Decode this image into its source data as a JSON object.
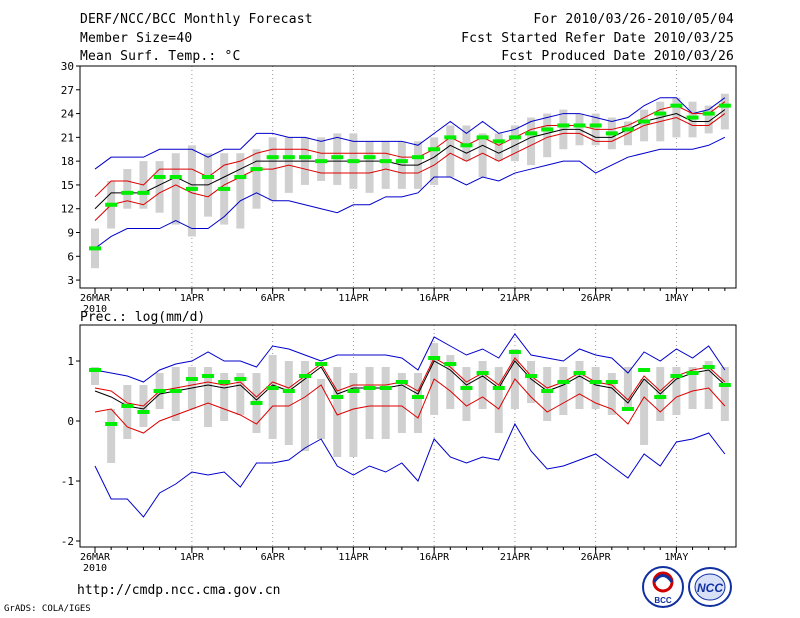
{
  "header": {
    "title": "DERF/NCC/BCC Monthly Forecast",
    "member_size": "Member Size=40",
    "variable": "Mean Surf. Temp.: °C",
    "forecast_range": "For 2010/03/26-2010/05/04",
    "refer_date": "Fcst Started Refer Date 2010/03/25",
    "produced_date": "Fcst Produced Date 2010/03/26"
  },
  "footer": {
    "url": "http://cmdp.ncc.cma.gov.cn",
    "credit": "GrADS: COLA/IGES",
    "logo_bcc": "BCC",
    "logo_ncc": "NCC"
  },
  "colors": {
    "box": "#d0d0d0",
    "median": "#00ee00",
    "mean": "#000000",
    "spread": "#dd0000",
    "extreme": "#0000cc",
    "grid": "#999999"
  },
  "chart_data": [
    {
      "type": "box",
      "title": "Mean Surf. Temp.: °C",
      "xlabel": "",
      "ylabel": "°C",
      "ylim": [
        2,
        30
      ],
      "yticks": [
        3,
        6,
        9,
        12,
        15,
        18,
        21,
        24,
        27,
        30
      ],
      "x_tick_labels": [
        {
          "day": 0,
          "label": "26MAR",
          "sub": "2010"
        },
        {
          "day": 6,
          "label": "1APR"
        },
        {
          "day": 11,
          "label": "6APR"
        },
        {
          "day": 16,
          "label": "11APR"
        },
        {
          "day": 21,
          "label": "16APR"
        },
        {
          "day": 26,
          "label": "21APR"
        },
        {
          "day": 31,
          "label": "26APR"
        },
        {
          "day": 36,
          "label": "1MAY"
        }
      ],
      "days": 40,
      "series": {
        "box_low": [
          4.5,
          9.5,
          12,
          12,
          11.5,
          10,
          8.5,
          11,
          10,
          9.5,
          12,
          13,
          14,
          15,
          15.5,
          15,
          14.5,
          14,
          14.5,
          14.5,
          14.5,
          15,
          16,
          18,
          16,
          18,
          18,
          17.5,
          18.5,
          19.5,
          20,
          20,
          19.5,
          20,
          20.5,
          20.5,
          21,
          21,
          21.5,
          22
        ],
        "box_high": [
          9.5,
          15.5,
          17,
          18,
          18,
          19,
          20,
          19,
          19,
          19,
          19.5,
          21,
          21,
          21,
          21,
          21.5,
          21.5,
          20.5,
          20.5,
          20.5,
          20.5,
          21,
          22.5,
          22.5,
          21.5,
          21.5,
          22.5,
          23.5,
          24,
          24.5,
          24,
          24,
          23.5,
          23,
          24.5,
          25.5,
          26,
          25.5,
          25,
          26.5
        ],
        "median": [
          7,
          12.5,
          14,
          14,
          16,
          16,
          14.5,
          16,
          14.5,
          16,
          17,
          18.5,
          18.5,
          18.5,
          18,
          18.5,
          18,
          18.5,
          18,
          18,
          18.5,
          19.5,
          21,
          20,
          21,
          20.5,
          21,
          21.5,
          22,
          22.5,
          22.5,
          22.5,
          21.5,
          22,
          23,
          24,
          25,
          23.5,
          24,
          25
        ],
        "mean": [
          12,
          14,
          14,
          14,
          15,
          16,
          15,
          15,
          16,
          17,
          18,
          18,
          18,
          18,
          18,
          18,
          18,
          18,
          18,
          17.5,
          17.5,
          18.5,
          20,
          19,
          20,
          19,
          20,
          21,
          21.5,
          22,
          22,
          21,
          21,
          22,
          23,
          23.5,
          24,
          23,
          23,
          24.5
        ],
        "spread_high": [
          13.5,
          15.5,
          15.5,
          15,
          17,
          17,
          17,
          16,
          17.5,
          18,
          19,
          19.5,
          19.5,
          19.5,
          19,
          19,
          19,
          19,
          19,
          18.5,
          18.5,
          19.5,
          21,
          20,
          21,
          20,
          21,
          22,
          22.5,
          22.5,
          22.5,
          22,
          22,
          22.5,
          23.5,
          24.5,
          25,
          24,
          24,
          25.5
        ],
        "spread_low": [
          10.5,
          12.5,
          13,
          12.5,
          14,
          15,
          14,
          13.5,
          15,
          16,
          17,
          17,
          17.5,
          17,
          16.5,
          16.5,
          16.5,
          16.5,
          17,
          16.5,
          16.5,
          17.5,
          19,
          18,
          19,
          18,
          19,
          20,
          21,
          21.5,
          21.5,
          20.5,
          20.5,
          21.5,
          22.5,
          23,
          23.5,
          22.5,
          22.5,
          24
        ],
        "max": [
          17,
          18.5,
          18.5,
          18.5,
          19.5,
          19.5,
          19.5,
          18.5,
          19.5,
          19.5,
          21.5,
          21.5,
          21,
          21,
          20.5,
          21,
          20.5,
          20.5,
          20.5,
          20.5,
          20,
          21.5,
          23,
          21.5,
          23,
          21.5,
          22,
          23,
          23.5,
          24,
          24,
          23.5,
          23,
          23.5,
          25,
          26,
          26,
          24,
          24.5,
          26
        ],
        "min": [
          7,
          8.5,
          9.5,
          9.5,
          9.5,
          10.5,
          9.5,
          9.5,
          11,
          13,
          14,
          13,
          13,
          12.5,
          12,
          11.5,
          12.5,
          12.5,
          13.5,
          13.5,
          14,
          16,
          16,
          15,
          16,
          15.5,
          16.5,
          17,
          17.5,
          18,
          18,
          16.5,
          17.5,
          18.5,
          19,
          19.5,
          19.5,
          19.5,
          20,
          21
        ]
      }
    },
    {
      "type": "box",
      "title": "Prec.: log(mm/d)",
      "xlabel": "",
      "ylabel": "log(mm/d)",
      "ylim": [
        -2.1,
        1.6
      ],
      "yticks": [
        -2,
        -1,
        0,
        1
      ],
      "x_tick_labels": [
        {
          "day": 0,
          "label": "26MAR",
          "sub": "2010"
        },
        {
          "day": 6,
          "label": "1APR"
        },
        {
          "day": 11,
          "label": "6APR"
        },
        {
          "day": 16,
          "label": "11APR"
        },
        {
          "day": 21,
          "label": "16APR"
        },
        {
          "day": 26,
          "label": "21APR"
        },
        {
          "day": 31,
          "label": "26APR"
        },
        {
          "day": 36,
          "label": "1MAY"
        }
      ],
      "days": 40,
      "series": {
        "box_low": [
          0.6,
          -0.7,
          -0.3,
          -0.1,
          0.2,
          0,
          0.2,
          -0.1,
          0,
          0.1,
          -0.2,
          -0.3,
          -0.4,
          -0.5,
          -0.3,
          -0.6,
          -0.6,
          -0.3,
          -0.3,
          -0.2,
          -0.2,
          0.1,
          0.2,
          0,
          0.2,
          -0.2,
          0.2,
          0.3,
          0,
          0.1,
          0.2,
          0.2,
          0.1,
          0.2,
          -0.4,
          0,
          0.1,
          0.2,
          0.2,
          0
        ],
        "box_high": [
          0.9,
          0.2,
          0.6,
          0.6,
          0.8,
          0.9,
          0.9,
          0.9,
          0.8,
          0.8,
          0.8,
          1.1,
          1,
          1,
          0.7,
          0.9,
          0.8,
          0.9,
          0.9,
          0.8,
          0.8,
          1.3,
          1.1,
          0.9,
          1,
          0.9,
          1.2,
          1,
          0.9,
          0.9,
          1,
          0.9,
          0.8,
          0.9,
          0.7,
          0.9,
          0.9,
          0.9,
          1,
          0.9
        ],
        "median": [
          0.85,
          -0.05,
          0.25,
          0.15,
          0.5,
          0.5,
          0.7,
          0.75,
          0.65,
          0.7,
          0.3,
          0.55,
          0.5,
          0.75,
          0.95,
          0.4,
          0.5,
          0.55,
          0.55,
          0.65,
          0.4,
          1.05,
          0.95,
          0.55,
          0.8,
          0.55,
          1.15,
          0.75,
          0.5,
          0.65,
          0.8,
          0.65,
          0.65,
          0.2,
          0.85,
          0.4,
          0.75,
          0.8,
          0.9,
          0.6
        ],
        "mean": [
          0.5,
          0.4,
          0.25,
          0.2,
          0.45,
          0.5,
          0.55,
          0.6,
          0.55,
          0.6,
          0.35,
          0.6,
          0.5,
          0.7,
          0.9,
          0.45,
          0.55,
          0.55,
          0.55,
          0.6,
          0.45,
          1,
          0.85,
          0.6,
          0.75,
          0.55,
          1,
          0.7,
          0.5,
          0.6,
          0.75,
          0.6,
          0.55,
          0.3,
          0.7,
          0.45,
          0.7,
          0.8,
          0.85,
          0.6
        ],
        "spread_high": [
          0.55,
          0.5,
          0.3,
          0.25,
          0.5,
          0.55,
          0.6,
          0.65,
          0.6,
          0.65,
          0.4,
          0.65,
          0.55,
          0.75,
          0.95,
          0.5,
          0.6,
          0.6,
          0.6,
          0.65,
          0.5,
          1.05,
          0.9,
          0.65,
          0.8,
          0.6,
          1.05,
          0.75,
          0.55,
          0.65,
          0.8,
          0.65,
          0.6,
          0.35,
          0.75,
          0.5,
          0.75,
          0.85,
          0.9,
          0.65
        ],
        "spread_low": [
          0.15,
          0.2,
          -0.1,
          -0.2,
          0,
          0.1,
          0.2,
          0.3,
          0.2,
          0.1,
          -0.05,
          0.25,
          0.25,
          0.4,
          0.6,
          0.1,
          0.2,
          0.25,
          0.25,
          0.25,
          0.05,
          0.7,
          0.5,
          0.25,
          0.4,
          0.2,
          0.7,
          0.4,
          0.15,
          0.3,
          0.45,
          0.3,
          0.2,
          -0.05,
          0.4,
          0.15,
          0.4,
          0.5,
          0.55,
          0.25
        ],
        "max": [
          0.85,
          0.8,
          0.75,
          0.65,
          0.85,
          0.95,
          1,
          1.15,
          1,
          1,
          0.9,
          1.25,
          1.2,
          1.1,
          1,
          1.1,
          1.1,
          1.1,
          1.1,
          1.05,
          0.85,
          1.4,
          1.25,
          1.1,
          1.2,
          1.05,
          1.45,
          1.1,
          1.05,
          1,
          1.2,
          1.1,
          1.05,
          0.8,
          1.15,
          1,
          1.2,
          1.05,
          1.25,
          0.85
        ],
        "min": [
          -0.75,
          -1.3,
          -1.3,
          -1.6,
          -1.2,
          -1.05,
          -0.85,
          -0.9,
          -0.85,
          -1.1,
          -0.7,
          -0.7,
          -0.65,
          -0.45,
          -0.3,
          -0.75,
          -0.9,
          -0.75,
          -0.85,
          -0.7,
          -1,
          -0.3,
          -0.6,
          -0.7,
          -0.6,
          -0.65,
          -0.05,
          -0.5,
          -0.8,
          -0.75,
          -0.65,
          -0.55,
          -0.75,
          -0.95,
          -0.55,
          -0.75,
          -0.35,
          -0.3,
          -0.2,
          -0.55
        ]
      }
    }
  ]
}
